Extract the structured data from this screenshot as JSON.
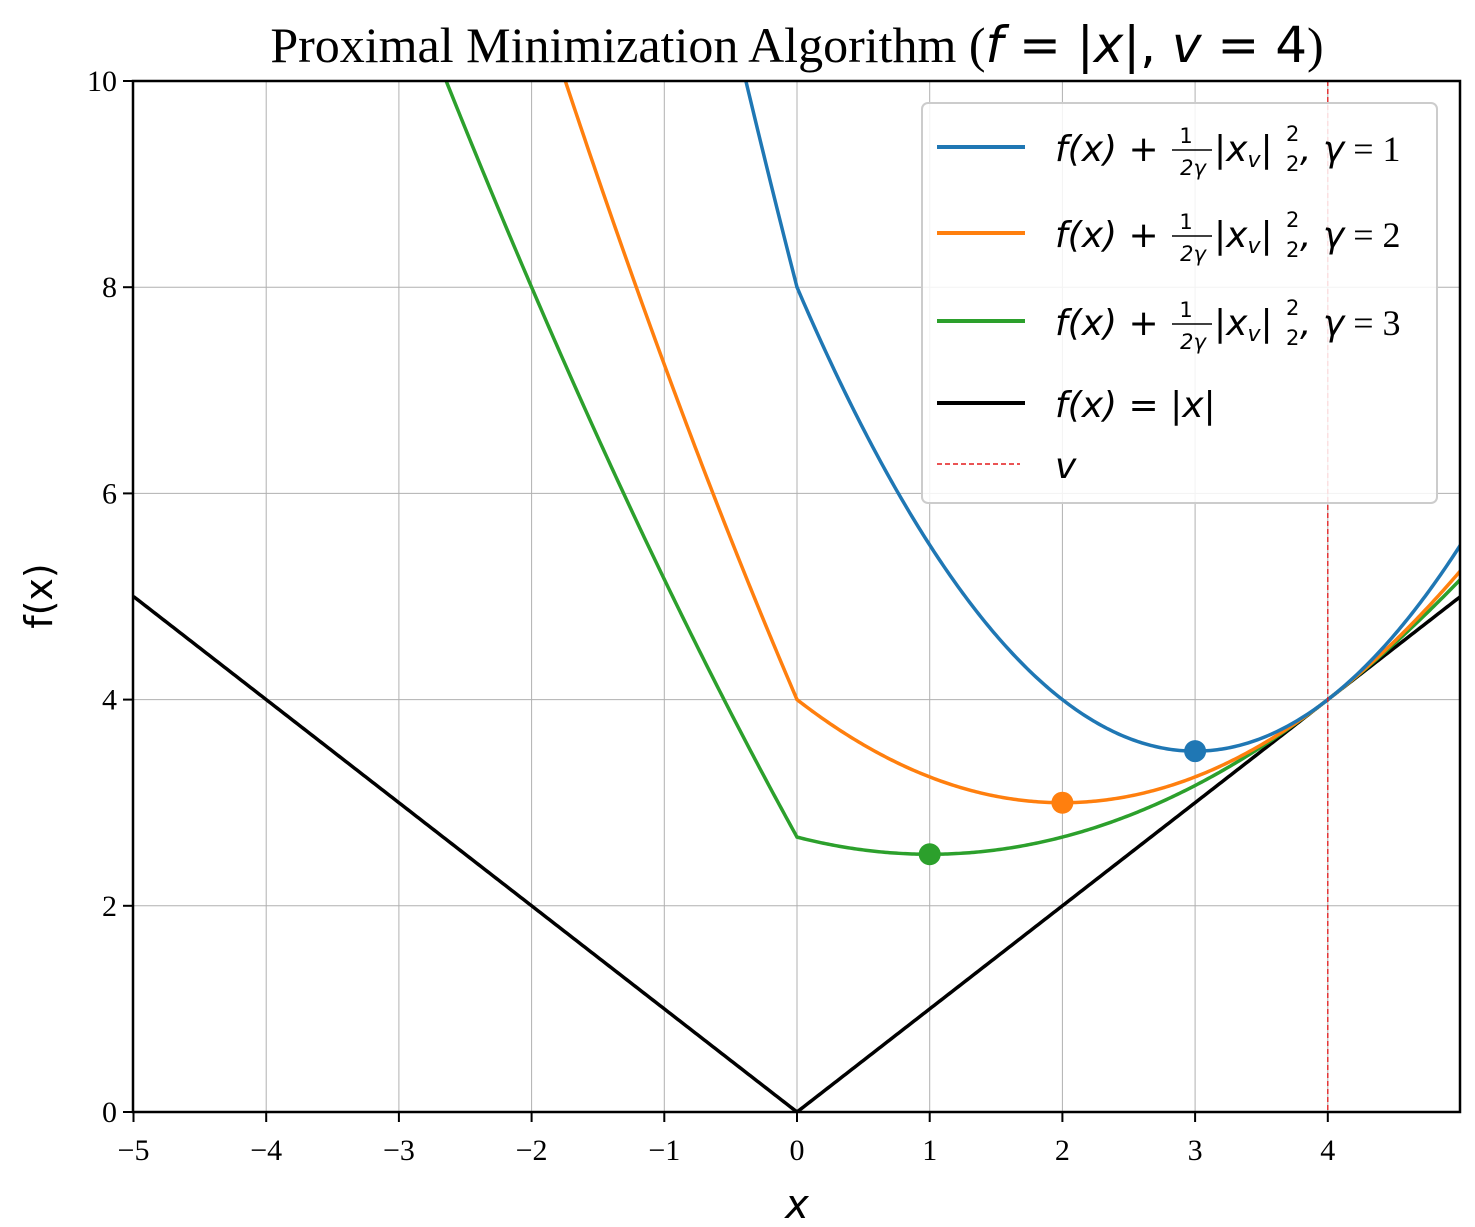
{
  "chart_data": {
    "type": "line",
    "title": {
      "prefix": "Proximal Minimization Algorithm (",
      "f": "f",
      "eq1": " = |",
      "x": "x",
      "mid": "|, ",
      "v": "v",
      "eq2": " = 4",
      "suffix": ")"
    },
    "xlabel": "x",
    "ylabel": "f(x)",
    "xlim": [
      -5,
      5
    ],
    "ylim": [
      0,
      10
    ],
    "x_ticks": [
      -5,
      -4,
      -3,
      -2,
      -1,
      0,
      1,
      2,
      3,
      4
    ],
    "x_tick_labels": [
      "−5",
      "−4",
      "−3",
      "−2",
      "−1",
      "0",
      "1",
      "2",
      "3",
      "4"
    ],
    "y_ticks": [
      0,
      2,
      4,
      6,
      8,
      10
    ],
    "y_tick_labels": [
      "0",
      "2",
      "4",
      "6",
      "8",
      "10"
    ],
    "grid": true,
    "legend_position": "top-right",
    "v": 4,
    "series": [
      {
        "gamma": 1,
        "color": "#1f77b4",
        "legend": {
          "main": "f(x) + ",
          "frac_num": "1",
          "frac_den": "2γ",
          "abs": "|x",
          "sub": "v",
          "close": "|",
          "sup": "2",
          "sub2": "2",
          "tail": ", γ",
          "eq": " = 1"
        },
        "minimum": [
          3,
          3.5
        ]
      },
      {
        "gamma": 2,
        "color": "#ff7f0e",
        "legend": {
          "main": "f(x) + ",
          "frac_num": "1",
          "frac_den": "2γ",
          "abs": "|x",
          "sub": "v",
          "close": "|",
          "sup": "2",
          "sub2": "2",
          "tail": ", γ",
          "eq": " = 2"
        },
        "minimum": [
          2,
          3.0
        ]
      },
      {
        "gamma": 3,
        "color": "#2ca02c",
        "legend": {
          "main": "f(x) + ",
          "frac_num": "1",
          "frac_den": "2γ",
          "abs": "|x",
          "sub": "v",
          "close": "|",
          "sup": "2",
          "sub2": "2",
          "tail": ", γ",
          "eq": " = 3"
        },
        "minimum": [
          1,
          2.5
        ]
      }
    ],
    "base_function": {
      "legend": "f(x) = |x|",
      "color": "#000000"
    },
    "vline": {
      "x": 4,
      "legend": "v",
      "color": "#e41a1c"
    }
  }
}
